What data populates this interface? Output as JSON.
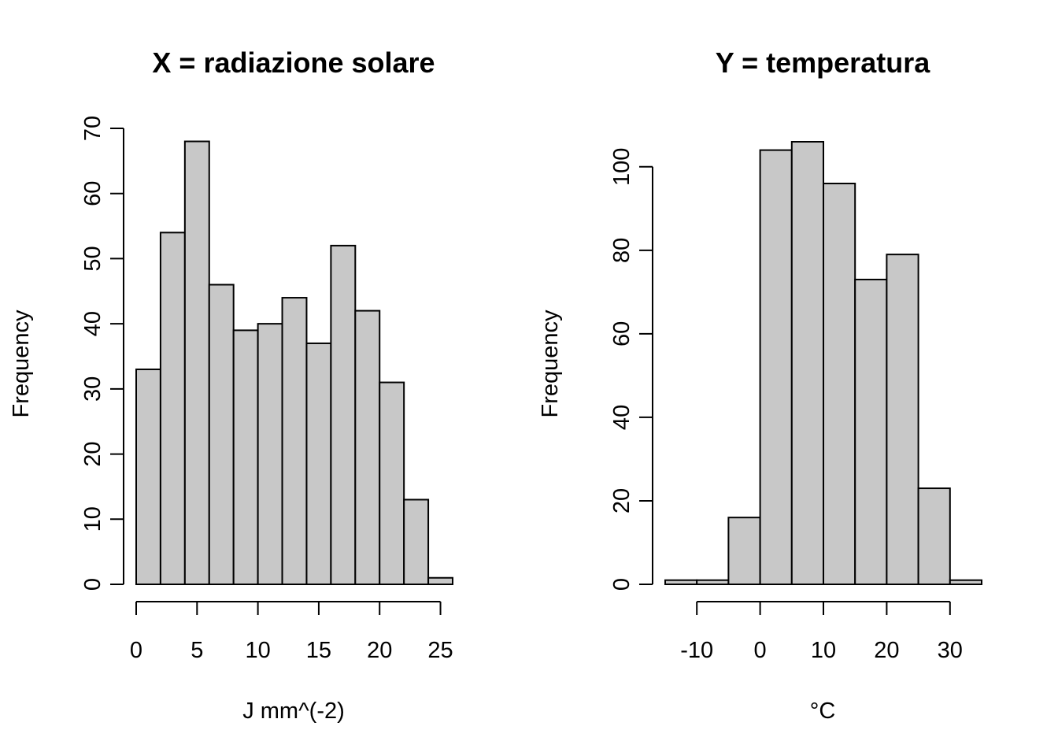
{
  "chart_data": [
    {
      "type": "bar",
      "title": "X = radiazione solare",
      "xlabel": "J mm^(-2)",
      "ylabel": "Frequency",
      "bin_edges": [
        0,
        2,
        4,
        6,
        8,
        10,
        12,
        14,
        16,
        18,
        20,
        22,
        24,
        26
      ],
      "values": [
        33,
        54,
        68,
        46,
        39,
        40,
        44,
        37,
        52,
        42,
        31,
        13,
        1
      ],
      "xticks": [
        0,
        5,
        10,
        15,
        20,
        25
      ],
      "xtick_labels": [
        "0",
        "5",
        "10",
        "15",
        "20",
        "25"
      ],
      "yticks": [
        0,
        10,
        20,
        30,
        40,
        50,
        60,
        70
      ],
      "ytick_labels": [
        "0",
        "10",
        "20",
        "30",
        "40",
        "50",
        "60",
        "70"
      ],
      "xlim": [
        0,
        26
      ],
      "ylim": [
        0,
        70
      ],
      "bar_color": "#c8c8c8",
      "grid": false
    },
    {
      "type": "bar",
      "title": "Y = temperatura",
      "xlabel": "°C",
      "ylabel": "Frequency",
      "bin_edges": [
        -15,
        -10,
        -5,
        0,
        5,
        10,
        15,
        20,
        25,
        30,
        35
      ],
      "values": [
        1,
        1,
        16,
        104,
        106,
        96,
        73,
        79,
        23,
        1
      ],
      "xticks": [
        -10,
        0,
        10,
        20,
        30
      ],
      "xtick_labels": [
        "-10",
        "0",
        "10",
        "20",
        "30"
      ],
      "yticks": [
        0,
        20,
        40,
        60,
        80,
        100
      ],
      "ytick_labels": [
        "0",
        "20",
        "40",
        "60",
        "80",
        "100"
      ],
      "xlim": [
        -15,
        35
      ],
      "ylim": [
        0,
        106
      ],
      "bar_color": "#c8c8c8",
      "grid": false
    }
  ]
}
